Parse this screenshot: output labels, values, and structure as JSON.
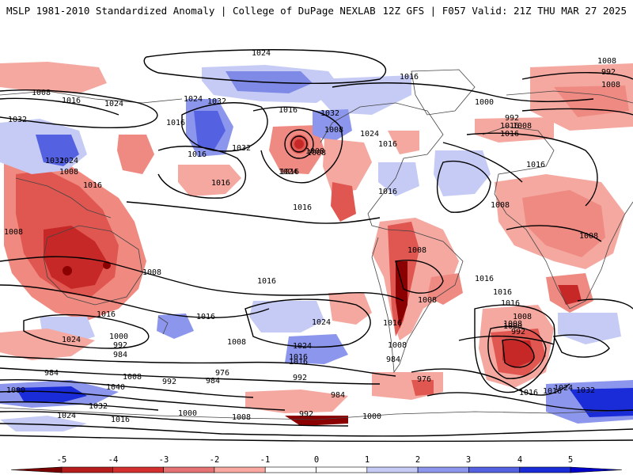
{
  "header": {
    "left_title": "MSLP 1981-2010 Standardized Anomaly | College of DuPage NEXLAB",
    "right_title": "12Z GFS | F057 Valid: 21Z THU MAR 27 2025"
  },
  "colorbar": {
    "ticks": [
      "-5",
      "-4",
      "-3",
      "-2",
      "-1",
      "0",
      "1",
      "2",
      "3",
      "4",
      "5"
    ],
    "colors": [
      "#7a0000",
      "#b71c1c",
      "#d32f2f",
      "#e57373",
      "#f8a8a0",
      "#ffffff",
      "#ffffff",
      "#c5cbf5",
      "#8c96ec",
      "#5462e2",
      "#1a2bd8",
      "#0000c8"
    ]
  },
  "map": {
    "contour_labels": [
      "1024",
      "1008",
      "1016",
      "1024",
      "1016",
      "1008",
      "992",
      "1032",
      "1024",
      "1016",
      "1008",
      "1000",
      "1024",
      "1032",
      "1016",
      "1016",
      "1032",
      "1008",
      "1016",
      "1016",
      "1016",
      "1016",
      "992",
      "1008",
      "1008",
      "1024",
      "1016",
      "1032",
      "1032",
      "1016",
      "1024",
      "1008",
      "1016",
      "1016",
      "1016",
      "1016",
      "1008",
      "1008",
      "1008",
      "1008",
      "1016",
      "1016",
      "1016",
      "1008",
      "1008",
      "1016",
      "1024",
      "1008",
      "1008",
      "1016",
      "1016",
      "1016",
      "1008",
      "1000",
      "992",
      "1024",
      "1000",
      "1016",
      "992",
      "984",
      "1024",
      "1008",
      "1016",
      "984",
      "984",
      "1040",
      "1008",
      "992",
      "976",
      "984",
      "992",
      "976",
      "984",
      "1024",
      "1032",
      "1016",
      "1000",
      "1032",
      "1016",
      "1024",
      "1000",
      "1008",
      "992",
      "1000",
      "1008"
    ]
  }
}
